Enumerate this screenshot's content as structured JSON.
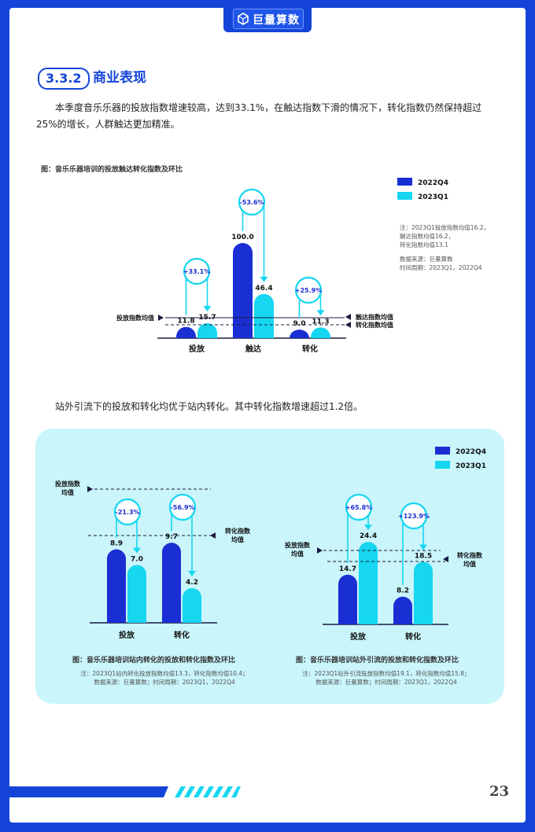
{
  "header": {
    "logo_text": "巨量算数",
    "logo_icon": "cube-logo-icon",
    "colors": {
      "frame": "#1545d8",
      "light_panel": "#c9f5fb"
    }
  },
  "section": {
    "number": "3.3.2",
    "title": "商业表现"
  },
  "paragraph1": "本季度音乐乐器的投放指数增速较高，达到33.1%，在触达指数下滑的情况下，转化指数仍然保持超过25%的增长，人群触达更加精准。",
  "paragraph2": "站外引流下的投放和转化均优于站内转化。其中转化指数增速超过1.2倍。",
  "colors": {
    "2022Q4": "#1a2fd3",
    "2023Q1": "#16d6f0"
  },
  "charts": {
    "top": {
      "title": "图：音乐乐器培训的投放触达转化指数及环比",
      "note_lines": [
        "注：2023Q1投放指数均值16.2，",
        "触达指数均值16.2，",
        "转化指数均值13.1",
        "",
        "数据来源：巨量算数",
        "时间周期：2023Q1，2022Q4"
      ],
      "legend": [
        "2022Q4",
        "2023Q1"
      ],
      "left_marker": "投放指数均值",
      "right_markers": [
        "触达指数均值",
        "转化指数均值"
      ]
    },
    "bottom_left": {
      "title": "图：音乐乐器培训站内转化的投放和转化指数及环比",
      "note_lines": [
        "注：2023Q1站内转化投放指数均值13.3，转化指数均值10.4；",
        "数据来源：巨量算数；时间周期：2023Q1，2022Q4"
      ],
      "left_marker": "投放指数\n均值",
      "right_marker": "转化指数\n均值"
    },
    "bottom_right": {
      "title": "图：音乐乐器培训站外引流的投放和转化指数及环比",
      "note_lines": [
        "注：2023Q1站外引流投放指数均值19.1，转化指数均值15.8；",
        "数据来源：巨量算数；时间周期：2023Q1，2022Q4"
      ],
      "left_marker": "投放指数\n均值",
      "right_marker": "转化指数\n均值"
    },
    "bottom_legend": [
      "2022Q4",
      "2023Q1"
    ]
  },
  "page_number": "23",
  "chart_data": [
    {
      "type": "bar",
      "title": "图：音乐乐器培训的投放触达转化指数及环比",
      "categories": [
        "投放",
        "触达",
        "转化"
      ],
      "series": [
        {
          "name": "2022Q4",
          "values": [
            11.8,
            100.0,
            9.0
          ]
        },
        {
          "name": "2023Q1",
          "values": [
            15.7,
            46.4,
            11.3
          ]
        }
      ],
      "changes": [
        "+33.1%",
        "-53.6%",
        "+25.9%"
      ],
      "ylim": [
        0,
        100
      ]
    },
    {
      "type": "bar",
      "title": "图：音乐乐器培训站内转化的投放和转化指数及环比",
      "categories": [
        "投放",
        "转化"
      ],
      "series": [
        {
          "name": "2022Q4",
          "values": [
            8.9,
            9.7
          ]
        },
        {
          "name": "2023Q1",
          "values": [
            7.0,
            4.2
          ]
        }
      ],
      "changes": [
        "-21.3%",
        "-56.9%"
      ],
      "ylim": [
        0,
        14
      ]
    },
    {
      "type": "bar",
      "title": "图：音乐乐器培训站外引流的投放和转化指数及环比",
      "categories": [
        "投放",
        "转化"
      ],
      "series": [
        {
          "name": "2022Q4",
          "values": [
            14.7,
            8.2
          ]
        },
        {
          "name": "2023Q1",
          "values": [
            24.4,
            18.5
          ]
        }
      ],
      "changes": [
        "+65.8%",
        "+123.9%"
      ],
      "ylim": [
        0,
        28
      ]
    }
  ]
}
